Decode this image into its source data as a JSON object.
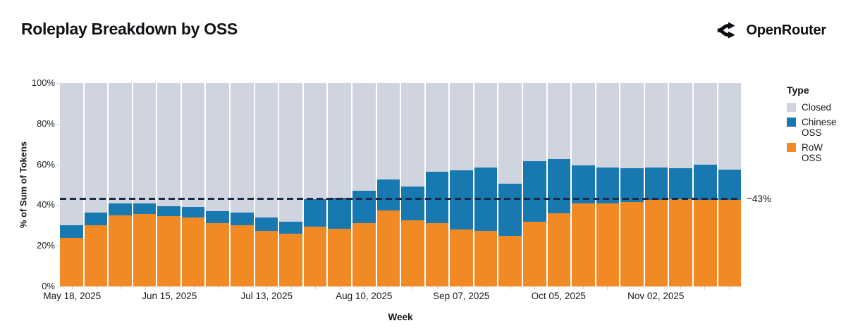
{
  "header": {
    "title": "Roleplay Breakdown by OSS",
    "brand": "OpenRouter"
  },
  "legend": {
    "title": "Type",
    "items": [
      {
        "label": "Closed",
        "series_index": 2
      },
      {
        "label": "Chinese OSS",
        "series_index": 1
      },
      {
        "label": "RoW OSS",
        "series_index": 0
      }
    ]
  },
  "colors": {
    "row_oss": "#f18a25",
    "chinese_oss": "#1878b0",
    "closed": "#d0d4df",
    "reference_line": "#1b2b45"
  },
  "chart_data": {
    "type": "bar",
    "stacked": true,
    "normalized_to_100_percent": true,
    "title": "Roleplay Breakdown by OSS",
    "xlabel": "Week",
    "ylabel": "% of Sum of Tokens",
    "ylim": [
      0,
      100
    ],
    "y_ticks": [
      "0%",
      "20%",
      "40%",
      "60%",
      "80%",
      "100%"
    ],
    "categories": [
      "May 18, 2025",
      "May 25, 2025",
      "Jun 01, 2025",
      "Jun 08, 2025",
      "Jun 15, 2025",
      "Jun 22, 2025",
      "Jun 29, 2025",
      "Jul 06, 2025",
      "Jul 13, 2025",
      "Jul 20, 2025",
      "Jul 27, 2025",
      "Aug 03, 2025",
      "Aug 10, 2025",
      "Aug 17, 2025",
      "Aug 24, 2025",
      "Aug 31, 2025",
      "Sep 07, 2025",
      "Sep 14, 2025",
      "Sep 21, 2025",
      "Sep 28, 2025",
      "Oct 05, 2025",
      "Oct 12, 2025",
      "Oct 19, 2025",
      "Oct 26, 2025",
      "Nov 02, 2025",
      "Nov 09, 2025",
      "Nov 16, 2025",
      "Nov 23, 2025"
    ],
    "x_tick_labels": [
      {
        "index": 0,
        "label": "May 18, 2025"
      },
      {
        "index": 4,
        "label": "Jun 15, 2025"
      },
      {
        "index": 8,
        "label": "Jul 13, 2025"
      },
      {
        "index": 12,
        "label": "Aug 10, 2025"
      },
      {
        "index": 16,
        "label": "Sep 07, 2025"
      },
      {
        "index": 20,
        "label": "Oct 05, 2025"
      },
      {
        "index": 24,
        "label": "Nov 02, 2025"
      }
    ],
    "series": [
      {
        "name": "RoW OSS",
        "color": "#f18a25",
        "values": [
          24,
          30,
          35,
          35.5,
          34.5,
          34,
          31,
          30,
          27.5,
          26,
          29.5,
          28.5,
          31,
          37.5,
          32.5,
          31,
          28,
          27.5,
          25,
          32,
          36,
          41,
          41,
          41.5,
          42.5,
          43,
          42.5,
          42.5
        ]
      },
      {
        "name": "Chinese OSS",
        "color": "#1878b0",
        "values": [
          6,
          6.5,
          6,
          5.5,
          5,
          5,
          6,
          6.5,
          6.5,
          6,
          13.5,
          15,
          16,
          15,
          16.5,
          25.5,
          29,
          31,
          25.5,
          29.5,
          26.5,
          18.5,
          17.5,
          16.5,
          16,
          15,
          17.5,
          15
        ]
      },
      {
        "name": "Closed",
        "color": "#d0d4df",
        "values": [
          70,
          63.5,
          59,
          59,
          60.5,
          61,
          63,
          63.5,
          66,
          68,
          57,
          56.5,
          53,
          47.5,
          51,
          43.5,
          43,
          41.5,
          49.5,
          38.5,
          37.5,
          40.5,
          41.5,
          42,
          41.5,
          42,
          40,
          42.5
        ]
      }
    ],
    "reference_line": {
      "value": 43,
      "label": "~43%"
    },
    "legend_position": "right",
    "grid": false
  }
}
